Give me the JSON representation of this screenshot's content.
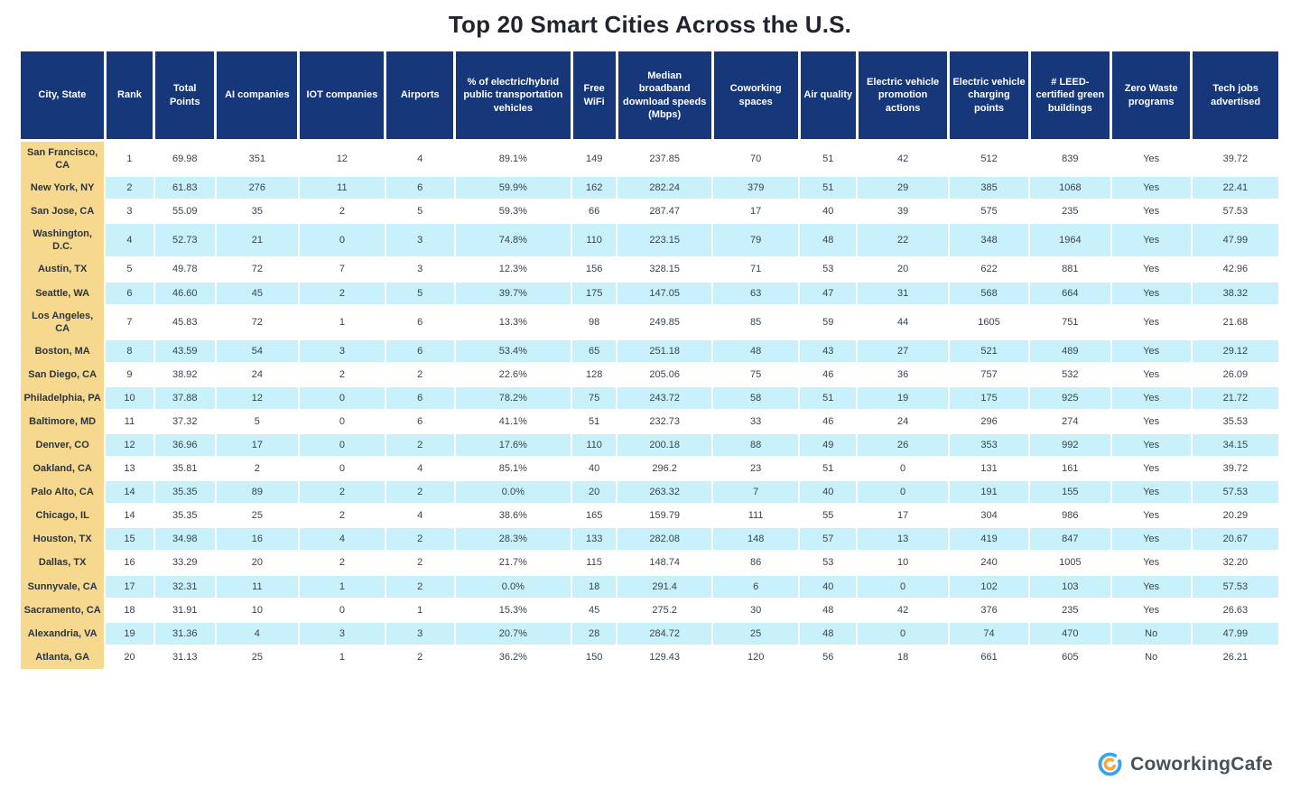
{
  "page": {
    "title": "Top 20 Smart Cities Across the U.S."
  },
  "table": {
    "columns": [
      "City, State",
      "Rank",
      "Total Points",
      "AI companies",
      "IOT companies",
      "Airports",
      "% of electric/hybrid public transportation vehicles",
      "Free WiFi",
      "Median broadband download speeds (Mbps)",
      "Coworking spaces",
      "Air quality",
      "Electric vehicle promotion actions",
      "Electric vehicle charging points",
      "# LEED-certified green buildings",
      "Zero Waste programs",
      "Tech jobs advertised"
    ],
    "rows": [
      [
        "San Francisco, CA",
        "1",
        "69.98",
        "351",
        "12",
        "4",
        "89.1%",
        "149",
        "237.85",
        "70",
        "51",
        "42",
        "512",
        "839",
        "Yes",
        "39.72"
      ],
      [
        "New York, NY",
        "2",
        "61.83",
        "276",
        "11",
        "6",
        "59.9%",
        "162",
        "282.24",
        "379",
        "51",
        "29",
        "385",
        "1068",
        "Yes",
        "22.41"
      ],
      [
        "San Jose, CA",
        "3",
        "55.09",
        "35",
        "2",
        "5",
        "59.3%",
        "66",
        "287.47",
        "17",
        "40",
        "39",
        "575",
        "235",
        "Yes",
        "57.53"
      ],
      [
        "Washington, D.C.",
        "4",
        "52.73",
        "21",
        "0",
        "3",
        "74.8%",
        "110",
        "223.15",
        "79",
        "48",
        "22",
        "348",
        "1964",
        "Yes",
        "47.99"
      ],
      [
        "Austin, TX",
        "5",
        "49.78",
        "72",
        "7",
        "3",
        "12.3%",
        "156",
        "328.15",
        "71",
        "53",
        "20",
        "622",
        "881",
        "Yes",
        "42.96"
      ],
      [
        "Seattle, WA",
        "6",
        "46.60",
        "45",
        "2",
        "5",
        "39.7%",
        "175",
        "147.05",
        "63",
        "47",
        "31",
        "568",
        "664",
        "Yes",
        "38.32"
      ],
      [
        "Los Angeles, CA",
        "7",
        "45.83",
        "72",
        "1",
        "6",
        "13.3%",
        "98",
        "249.85",
        "85",
        "59",
        "44",
        "1605",
        "751",
        "Yes",
        "21.68"
      ],
      [
        "Boston, MA",
        "8",
        "43.59",
        "54",
        "3",
        "6",
        "53.4%",
        "65",
        "251.18",
        "48",
        "43",
        "27",
        "521",
        "489",
        "Yes",
        "29.12"
      ],
      [
        "San Diego, CA",
        "9",
        "38.92",
        "24",
        "2",
        "2",
        "22.6%",
        "128",
        "205.06",
        "75",
        "46",
        "36",
        "757",
        "532",
        "Yes",
        "26.09"
      ],
      [
        "Philadelphia, PA",
        "10",
        "37.88",
        "12",
        "0",
        "6",
        "78.2%",
        "75",
        "243.72",
        "58",
        "51",
        "19",
        "175",
        "925",
        "Yes",
        "21.72"
      ],
      [
        "Baltimore, MD",
        "11",
        "37.32",
        "5",
        "0",
        "6",
        "41.1%",
        "51",
        "232.73",
        "33",
        "46",
        "24",
        "296",
        "274",
        "Yes",
        "35.53"
      ],
      [
        "Denver, CO",
        "12",
        "36.96",
        "17",
        "0",
        "2",
        "17.6%",
        "110",
        "200.18",
        "88",
        "49",
        "26",
        "353",
        "992",
        "Yes",
        "34.15"
      ],
      [
        "Oakland, CA",
        "13",
        "35.81",
        "2",
        "0",
        "4",
        "85.1%",
        "40",
        "296.2",
        "23",
        "51",
        "0",
        "131",
        "161",
        "Yes",
        "39.72"
      ],
      [
        "Palo Alto, CA",
        "14",
        "35.35",
        "89",
        "2",
        "2",
        "0.0%",
        "20",
        "263.32",
        "7",
        "40",
        "0",
        "191",
        "155",
        "Yes",
        "57.53"
      ],
      [
        "Chicago, IL",
        "14",
        "35.35",
        "25",
        "2",
        "4",
        "38.6%",
        "165",
        "159.79",
        "111",
        "55",
        "17",
        "304",
        "986",
        "Yes",
        "20.29"
      ],
      [
        "Houston, TX",
        "15",
        "34.98",
        "16",
        "4",
        "2",
        "28.3%",
        "133",
        "282.08",
        "148",
        "57",
        "13",
        "419",
        "847",
        "Yes",
        "20.67"
      ],
      [
        "Dallas, TX",
        "16",
        "33.29",
        "20",
        "2",
        "2",
        "21.7%",
        "115",
        "148.74",
        "86",
        "53",
        "10",
        "240",
        "1005",
        "Yes",
        "32.20"
      ],
      [
        "Sunnyvale, CA",
        "17",
        "32.31",
        "11",
        "1",
        "2",
        "0.0%",
        "18",
        "291.4",
        "6",
        "40",
        "0",
        "102",
        "103",
        "Yes",
        "57.53"
      ],
      [
        "Sacramento, CA",
        "18",
        "31.91",
        "10",
        "0",
        "1",
        "15.3%",
        "45",
        "275.2",
        "30",
        "48",
        "42",
        "376",
        "235",
        "Yes",
        "26.63"
      ],
      [
        "Alexandria, VA",
        "19",
        "31.36",
        "4",
        "3",
        "3",
        "20.7%",
        "28",
        "284.72",
        "25",
        "48",
        "0",
        "74",
        "470",
        "No",
        "47.99"
      ],
      [
        "Atlanta, GA",
        "20",
        "31.13",
        "25",
        "1",
        "2",
        "36.2%",
        "150",
        "129.43",
        "120",
        "56",
        "18",
        "661",
        "605",
        "No",
        "26.21"
      ]
    ]
  },
  "footer": {
    "brand": "CoworkingCafe"
  },
  "colors": {
    "header_bg": "#16377a",
    "city_column_bg": "#f6d98e",
    "stripe_bg": "#c9f1fb",
    "logo_blue": "#38a3ef",
    "logo_orange": "#f5a83c"
  },
  "chart_data": {
    "type": "table",
    "title": "Top 20 Smart Cities Across the U.S.",
    "columns": [
      "City, State",
      "Rank",
      "Total Points",
      "AI companies",
      "IOT companies",
      "Airports",
      "% of electric/hybrid public transportation vehicles",
      "Free WiFi",
      "Median broadband download speeds (Mbps)",
      "Coworking spaces",
      "Air quality",
      "Electric vehicle promotion actions",
      "Electric vehicle charging points",
      "# LEED-certified green buildings",
      "Zero Waste programs",
      "Tech jobs advertised"
    ],
    "rows": [
      [
        "San Francisco, CA",
        1,
        69.98,
        351,
        12,
        4,
        "89.1%",
        149,
        237.85,
        70,
        51,
        42,
        512,
        839,
        "Yes",
        39.72
      ],
      [
        "New York, NY",
        2,
        61.83,
        276,
        11,
        6,
        "59.9%",
        162,
        282.24,
        379,
        51,
        29,
        385,
        1068,
        "Yes",
        22.41
      ],
      [
        "San Jose, CA",
        3,
        55.09,
        35,
        2,
        5,
        "59.3%",
        66,
        287.47,
        17,
        40,
        39,
        575,
        235,
        "Yes",
        57.53
      ],
      [
        "Washington, D.C.",
        4,
        52.73,
        21,
        0,
        3,
        "74.8%",
        110,
        223.15,
        79,
        48,
        22,
        348,
        1964,
        "Yes",
        47.99
      ],
      [
        "Austin, TX",
        5,
        49.78,
        72,
        7,
        3,
        "12.3%",
        156,
        328.15,
        71,
        53,
        20,
        622,
        881,
        "Yes",
        42.96
      ],
      [
        "Seattle, WA",
        6,
        46.6,
        45,
        2,
        5,
        "39.7%",
        175,
        147.05,
        63,
        47,
        31,
        568,
        664,
        "Yes",
        38.32
      ],
      [
        "Los Angeles, CA",
        7,
        45.83,
        72,
        1,
        6,
        "13.3%",
        98,
        249.85,
        85,
        59,
        44,
        1605,
        751,
        "Yes",
        21.68
      ],
      [
        "Boston, MA",
        8,
        43.59,
        54,
        3,
        6,
        "53.4%",
        65,
        251.18,
        48,
        43,
        27,
        521,
        489,
        "Yes",
        29.12
      ],
      [
        "San Diego, CA",
        9,
        38.92,
        24,
        2,
        2,
        "22.6%",
        128,
        205.06,
        75,
        46,
        36,
        757,
        532,
        "Yes",
        26.09
      ],
      [
        "Philadelphia, PA",
        10,
        37.88,
        12,
        0,
        6,
        "78.2%",
        75,
        243.72,
        58,
        51,
        19,
        175,
        925,
        "Yes",
        21.72
      ],
      [
        "Baltimore, MD",
        11,
        37.32,
        5,
        0,
        6,
        "41.1%",
        51,
        232.73,
        33,
        46,
        24,
        296,
        274,
        "Yes",
        35.53
      ],
      [
        "Denver, CO",
        12,
        36.96,
        17,
        0,
        2,
        "17.6%",
        110,
        200.18,
        88,
        49,
        26,
        353,
        992,
        "Yes",
        34.15
      ],
      [
        "Oakland, CA",
        13,
        35.81,
        2,
        0,
        4,
        "85.1%",
        40,
        296.2,
        23,
        51,
        0,
        131,
        161,
        "Yes",
        39.72
      ],
      [
        "Palo Alto, CA",
        14,
        35.35,
        89,
        2,
        2,
        "0.0%",
        20,
        263.32,
        7,
        40,
        0,
        191,
        155,
        "Yes",
        57.53
      ],
      [
        "Chicago, IL",
        14,
        35.35,
        25,
        2,
        4,
        "38.6%",
        165,
        159.79,
        111,
        55,
        17,
        304,
        986,
        "Yes",
        20.29
      ],
      [
        "Houston, TX",
        15,
        34.98,
        16,
        4,
        2,
        "28.3%",
        133,
        282.08,
        148,
        57,
        13,
        419,
        847,
        "Yes",
        20.67
      ],
      [
        "Dallas, TX",
        16,
        33.29,
        20,
        2,
        2,
        "21.7%",
        115,
        148.74,
        86,
        53,
        10,
        240,
        1005,
        "Yes",
        32.2
      ],
      [
        "Sunnyvale, CA",
        17,
        32.31,
        11,
        1,
        2,
        "0.0%",
        18,
        291.4,
        6,
        40,
        0,
        102,
        103,
        "Yes",
        57.53
      ],
      [
        "Sacramento, CA",
        18,
        31.91,
        10,
        0,
        1,
        "15.3%",
        45,
        275.2,
        30,
        48,
        42,
        376,
        235,
        "Yes",
        26.63
      ],
      [
        "Alexandria, VA",
        19,
        31.36,
        4,
        3,
        3,
        "20.7%",
        28,
        284.72,
        25,
        48,
        0,
        74,
        470,
        "No",
        47.99
      ],
      [
        "Atlanta, GA",
        20,
        31.13,
        25,
        1,
        2,
        "36.2%",
        150,
        129.43,
        120,
        56,
        18,
        661,
        605,
        "No",
        26.21
      ]
    ]
  }
}
